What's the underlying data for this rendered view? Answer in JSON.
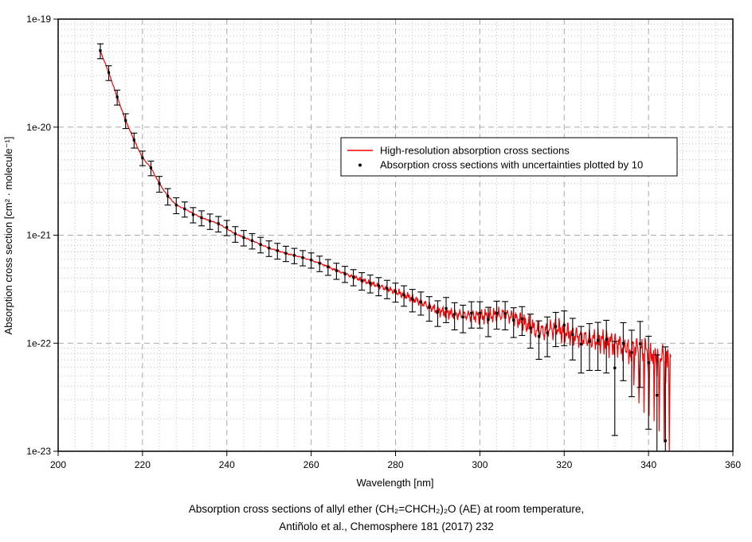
{
  "figure": {
    "x_axis": {
      "label": "Wavelength [nm]",
      "min": 200,
      "max": 360,
      "major_tick_step": 20,
      "minor_tick_step": 4,
      "tick_values": [
        200,
        220,
        240,
        260,
        280,
        300,
        320,
        340,
        360
      ],
      "tick_labels": [
        "200",
        "220",
        "240",
        "260",
        "280",
        "300",
        "320",
        "340",
        "360"
      ]
    },
    "y_axis": {
      "label": "Absorption cross section [cm² · molecule⁻¹]",
      "scale": "log",
      "min": 1e-23,
      "max": 1e-19,
      "tick_values": [
        1e-19,
        1e-20,
        1e-21,
        1e-22,
        1e-23
      ],
      "tick_labels": [
        "1e-19",
        "1e-20",
        "1e-21",
        "1e-22",
        "1e-23"
      ]
    },
    "legend": {
      "items": [
        {
          "marker": "red-line",
          "label": "High-resolution absorption cross sections"
        },
        {
          "marker": "black-dot",
          "label": "Absorption cross sections with uncertainties plotted by 10"
        }
      ]
    },
    "caption_line1": "Absorption cross sections of allyl ether (CH₂=CHCH₂)₂O (AE) at room temperature,",
    "caption_line2": "Antiñolo et al., Chemosphere 181 (2017) 232"
  },
  "colors": {
    "line": "#ff0000",
    "points": "#000000",
    "grid_major": "#a9a9a9",
    "grid_minor": "#c0c0c0",
    "frame": "#000000",
    "background": "#ffffff"
  },
  "chart_data": {
    "type": "line",
    "title": "",
    "xlabel": "Wavelength [nm]",
    "ylabel": "Absorption cross section [cm² · molecule⁻¹]",
    "x_range": [
      200,
      360
    ],
    "y_range": [
      1e-23,
      1e-19
    ],
    "y_scale": "log",
    "grid": "major-dashed + minor-dotted",
    "legend_position": "upper-center-right",
    "series": [
      {
        "name": "High-resolution absorption cross sections",
        "type": "line",
        "color": "#ff0000",
        "base_wavelength_nm": [
          209.8,
          212,
          214,
          216,
          218,
          220,
          222,
          224,
          226,
          228,
          230,
          234,
          238,
          242,
          246,
          250,
          254,
          258,
          262,
          266,
          270,
          274,
          278,
          282,
          286,
          290,
          294,
          298,
          302,
          306,
          310,
          314,
          318,
          322,
          326,
          330,
          334,
          338,
          342,
          345.4
        ],
        "base_cross_section_cm2": [
          5.3e-20,
          3.2e-20,
          1.9e-20,
          1.15e-20,
          7.6e-21,
          5.2e-21,
          4.2e-21,
          3e-21,
          2.3e-21,
          1.9e-21,
          1.75e-21,
          1.45e-21,
          1.28e-21,
          1.03e-21,
          8.9e-22,
          7.6e-22,
          6.8e-22,
          6.2e-22,
          5.5e-22,
          4.7e-22,
          4.1e-22,
          3.6e-22,
          3.2e-22,
          2.8e-22,
          2.4e-22,
          2e-22,
          1.85e-22,
          1.8e-22,
          1.78e-22,
          1.85e-22,
          1.6e-22,
          1.3e-22,
          1.4e-22,
          1.2e-22,
          1.08e-22,
          1.05e-22,
          9.5e-23,
          9e-23,
          8e-23,
          7.5e-23
        ],
        "noise_model": {
          "onset_nm": 262,
          "base_log_amplitude": 0.006,
          "max_log_amplitude": 0.145,
          "mid_spike_start_nm": 308,
          "mid_spike_log_depth": 0.22,
          "deep_spike_start_nm": 333,
          "deep_spike_log_depth": 0.82,
          "sample_step_nm": 0.12
        }
      },
      {
        "name": "Absorption cross sections with uncertainties plotted by 10",
        "type": "scatter-with-errorbars",
        "color": "#000000",
        "spacing_nm": 2,
        "wavelength_nm": [
          210,
          212,
          214,
          216,
          218,
          220,
          222,
          224,
          226,
          228,
          230,
          232,
          234,
          236,
          238,
          240,
          242,
          244,
          246,
          248,
          250,
          252,
          254,
          256,
          258,
          260,
          262,
          264,
          266,
          268,
          270,
          272,
          274,
          276,
          278,
          280,
          282,
          284,
          286,
          288,
          290,
          292,
          294,
          296,
          298,
          300,
          302,
          304,
          306,
          308,
          310,
          312,
          314,
          316,
          318,
          320,
          322,
          324,
          326,
          328,
          330,
          332,
          334,
          336,
          338,
          340,
          342,
          344
        ],
        "cross_section_cm2": [
          5.1e-20,
          3.2e-20,
          1.9e-20,
          1.15e-20,
          7.6e-21,
          5.2e-21,
          4.2e-21,
          3e-21,
          2.3e-21,
          1.9e-21,
          1.75e-21,
          1.55e-21,
          1.45e-21,
          1.35e-21,
          1.28e-21,
          1.18e-21,
          1.03e-21,
          9.5e-22,
          8.9e-22,
          8.2e-22,
          7.6e-22,
          7.2e-22,
          6.8e-22,
          6.5e-22,
          6.2e-22,
          5.9e-22,
          5.5e-22,
          5.1e-22,
          4.7e-22,
          4.4e-22,
          4.1e-22,
          3.8e-22,
          3.6e-22,
          3.4e-22,
          3.2e-22,
          3e-22,
          2.8e-22,
          2.55e-22,
          2.4e-22,
          2.15e-22,
          1.95e-22,
          2.1e-22,
          1.85e-22,
          1.75e-22,
          1.9e-22,
          1.9e-22,
          1.65e-22,
          1.9e-22,
          1.88e-22,
          1.63e-22,
          1.68e-22,
          1.38e-22,
          1.16e-22,
          1.25e-22,
          1.43e-22,
          1.47e-22,
          1.2e-22,
          9.8e-23,
          1.04e-22,
          1.06e-22,
          1.08e-22,
          5.9e-23,
          1e-22,
          8.2e-23,
          9.9e-23,
          6.6e-23,
          3.3e-23,
          1.25e-23
        ],
        "uncertainty_cm2": [
          8e-21,
          5e-21,
          3e-21,
          1.8e-21,
          1.2e-21,
          8e-22,
          6.5e-22,
          5e-22,
          4e-22,
          3.2e-22,
          2.8e-22,
          2.5e-22,
          2.3e-22,
          2.2e-22,
          2.1e-22,
          1.9e-22,
          1.7e-22,
          1.55e-22,
          1.45e-22,
          1.35e-22,
          1.25e-22,
          1.2e-22,
          1.1e-22,
          1.05e-22,
          1e-22,
          9.5e-23,
          9e-23,
          8.5e-23,
          8e-23,
          7.5e-23,
          7e-23,
          7e-23,
          6.8e-23,
          6.5e-23,
          6.2e-23,
          6e-23,
          6e-23,
          6e-23,
          5.8e-23,
          5.5e-23,
          5.2e-23,
          5.5e-23,
          5.2e-23,
          5e-23,
          5.2e-23,
          5.2e-23,
          5e-23,
          5.5e-23,
          5.5e-23,
          5e-23,
          5e-23,
          4.8e-23,
          4.5e-23,
          5e-23,
          5e-23,
          5.2e-23,
          5e-23,
          4.5e-23,
          4.8e-23,
          5e-23,
          5.5e-23,
          4.5e-23,
          5.5e-23,
          5e-23,
          6e-23,
          5e-23,
          4.5e-23,
          8e-23
        ]
      }
    ]
  }
}
